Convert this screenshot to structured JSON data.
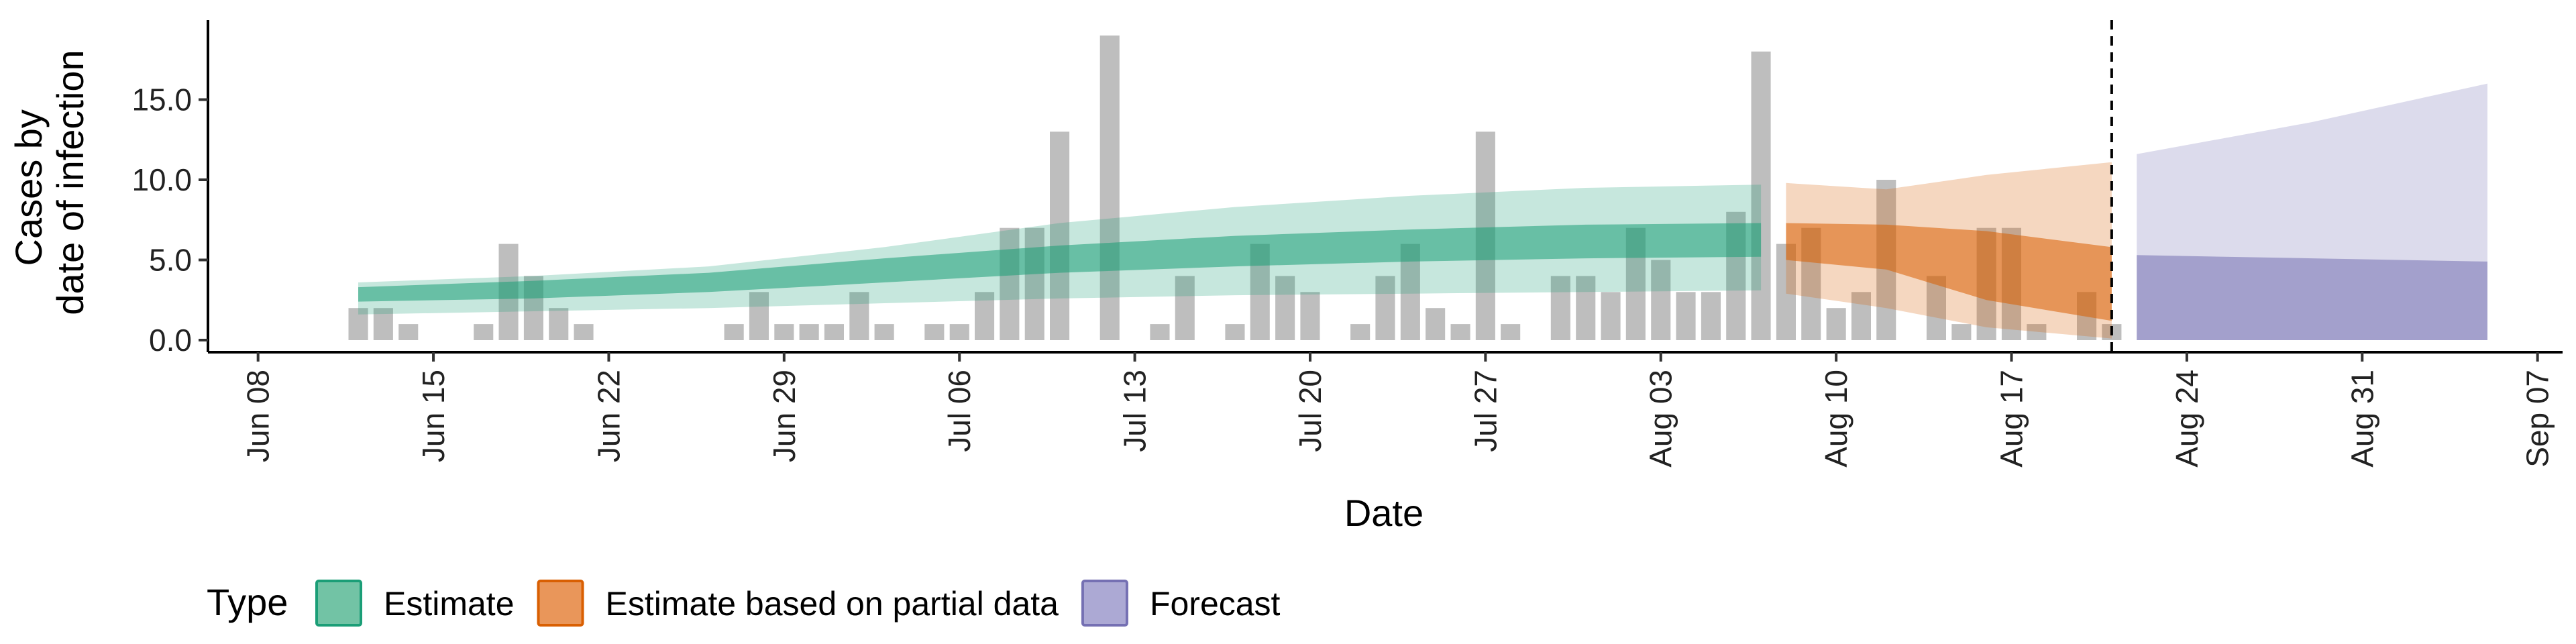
{
  "chart_data": {
    "type": "bar",
    "xlabel": "Date",
    "ylabel": [
      "Cases by",
      "date of infection"
    ],
    "ylim": [
      0,
      20
    ],
    "y_ticks": [
      0,
      5,
      10,
      15
    ],
    "y_tick_labels": [
      "0.0",
      "5.0",
      "10.0",
      "15.0"
    ],
    "x_range": [
      "2020-06-06",
      "2020-09-08"
    ],
    "x_ticks": [
      "2020-06-08",
      "2020-06-15",
      "2020-06-22",
      "2020-06-29",
      "2020-07-06",
      "2020-07-13",
      "2020-07-20",
      "2020-07-27",
      "2020-08-03",
      "2020-08-10",
      "2020-08-17",
      "2020-08-24",
      "2020-08-31",
      "2020-09-07"
    ],
    "x_tick_labels": [
      "Jun 08",
      "Jun 15",
      "Jun 22",
      "Jun 29",
      "Jul 06",
      "Jul 13",
      "Jul 20",
      "Jul 27",
      "Aug 03",
      "Aug 10",
      "Aug 17",
      "Aug 24",
      "Aug 31",
      "Sep 07"
    ],
    "grid": false,
    "legend_position": "bottom-left",
    "vline_date": "2020-08-21",
    "reported_cases": {
      "color": "#bebebe",
      "dates": [
        "2020-06-12",
        "2020-06-13",
        "2020-06-14",
        "2020-06-15",
        "2020-06-16",
        "2020-06-17",
        "2020-06-18",
        "2020-06-19",
        "2020-06-20",
        "2020-06-21",
        "2020-06-22",
        "2020-06-23",
        "2020-06-24",
        "2020-06-25",
        "2020-06-26",
        "2020-06-27",
        "2020-06-28",
        "2020-06-29",
        "2020-06-30",
        "2020-07-01",
        "2020-07-02",
        "2020-07-03",
        "2020-07-04",
        "2020-07-05",
        "2020-07-06",
        "2020-07-07",
        "2020-07-08",
        "2020-07-09",
        "2020-07-10",
        "2020-07-11",
        "2020-07-12",
        "2020-07-13",
        "2020-07-14",
        "2020-07-15",
        "2020-07-16",
        "2020-07-17",
        "2020-07-18",
        "2020-07-19",
        "2020-07-20",
        "2020-07-21",
        "2020-07-22",
        "2020-07-23",
        "2020-07-24",
        "2020-07-25",
        "2020-07-26",
        "2020-07-27",
        "2020-07-28",
        "2020-07-29",
        "2020-07-30",
        "2020-07-31",
        "2020-08-01",
        "2020-08-02",
        "2020-08-03",
        "2020-08-04",
        "2020-08-05",
        "2020-08-06",
        "2020-08-07",
        "2020-08-08",
        "2020-08-09",
        "2020-08-10",
        "2020-08-11",
        "2020-08-12",
        "2020-08-13",
        "2020-08-14",
        "2020-08-15",
        "2020-08-16",
        "2020-08-17",
        "2020-08-18",
        "2020-08-19",
        "2020-08-20",
        "2020-08-21"
      ],
      "values": [
        2,
        2,
        1,
        0,
        0,
        1,
        6,
        4,
        2,
        1,
        0,
        0,
        0,
        0,
        0,
        1,
        3,
        1,
        1,
        1,
        3,
        1,
        0,
        1,
        1,
        3,
        7,
        7,
        13,
        0,
        19,
        0,
        1,
        4,
        0,
        1,
        6,
        4,
        3,
        0,
        1,
        4,
        6,
        2,
        1,
        13,
        1,
        0,
        4,
        4,
        3,
        7,
        5,
        3,
        3,
        8,
        18,
        6,
        7,
        2,
        3,
        10,
        0,
        4,
        1,
        7,
        7,
        1,
        0,
        3,
        1
      ]
    },
    "series": [
      {
        "name": "Estimate",
        "color": "#1b9e77",
        "dates": [
          "2020-06-12",
          "2020-06-19",
          "2020-06-26",
          "2020-07-03",
          "2020-07-10",
          "2020-07-17",
          "2020-07-24",
          "2020-07-31",
          "2020-08-07"
        ],
        "lower_90": [
          1.6,
          1.8,
          2.0,
          2.3,
          2.6,
          2.8,
          2.9,
          3.0,
          3.1
        ],
        "upper_90": [
          3.6,
          4.0,
          4.6,
          5.8,
          7.3,
          8.3,
          9.0,
          9.5,
          9.7
        ],
        "lower_50": [
          2.4,
          2.6,
          3.0,
          3.6,
          4.2,
          4.6,
          4.9,
          5.1,
          5.2
        ],
        "upper_50": [
          3.3,
          3.7,
          4.2,
          5.1,
          5.9,
          6.5,
          6.9,
          7.2,
          7.3
        ]
      },
      {
        "name": "Estimate based on partial data",
        "color": "#d95f02",
        "dates": [
          "2020-08-08",
          "2020-08-12",
          "2020-08-16",
          "2020-08-21"
        ],
        "lower_90": [
          2.9,
          2.0,
          0.8,
          0.1
        ],
        "upper_90": [
          9.8,
          9.4,
          10.3,
          11.1
        ],
        "lower_50": [
          5.0,
          4.4,
          2.5,
          1.2
        ],
        "upper_50": [
          7.3,
          7.2,
          6.8,
          5.8
        ]
      },
      {
        "name": "Forecast",
        "color": "#7570b3",
        "dates": [
          "2020-08-22",
          "2020-08-29",
          "2020-09-05"
        ],
        "lower_90": [
          0,
          0,
          0
        ],
        "upper_90": [
          11.6,
          13.6,
          16.0
        ],
        "lower_50": [
          0,
          0,
          0
        ],
        "upper_50": [
          5.3,
          5.1,
          4.9
        ]
      }
    ]
  },
  "legend": {
    "title": "Type",
    "items": [
      {
        "label": "Estimate",
        "fill": "#72c3a5",
        "stroke": "#1b9e77"
      },
      {
        "label": "Estimate based on partial data",
        "fill": "#e9965a",
        "stroke": "#d95f02"
      },
      {
        "label": "Forecast",
        "fill": "#aca9d4",
        "stroke": "#7570b3"
      }
    ]
  }
}
